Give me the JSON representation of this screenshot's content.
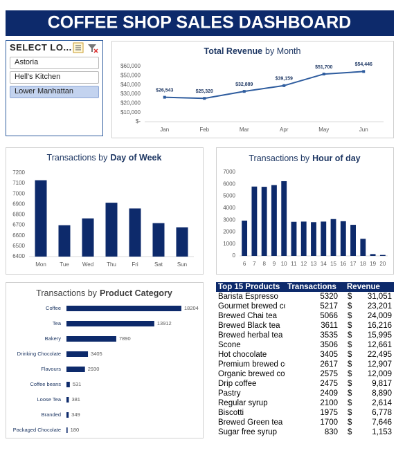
{
  "header": {
    "title": "COFFEE SHOP SALES DASHBOARD"
  },
  "slicer": {
    "title": "SELECT LO...",
    "items": [
      "Astoria",
      "Hell's Kitchen",
      "Lower Manhattan"
    ],
    "selected": 2
  },
  "chart_data": [
    {
      "type": "line",
      "title": [
        {
          "text": "Total Revenue",
          "bold": true
        },
        {
          "text": "by Month",
          "bold": false
        }
      ],
      "categories": [
        "Jan",
        "Feb",
        "Mar",
        "Apr",
        "May",
        "Jun"
      ],
      "values": [
        26543,
        25320,
        32889,
        39159,
        51700,
        54446
      ],
      "value_labels": [
        "$26,543",
        "$25,320",
        "$32,889",
        "$39,159",
        "$51,700",
        "$54,446"
      ],
      "color": "#2e5c9e",
      "ylim": [
        0,
        60000
      ],
      "yticks": [
        {
          "value": 0,
          "label": "$-"
        },
        {
          "value": 10000,
          "label": "$10,000"
        },
        {
          "value": 20000,
          "label": "$20,000"
        },
        {
          "value": 30000,
          "label": "$30,000"
        },
        {
          "value": 40000,
          "label": "$40,000"
        },
        {
          "value": 50000,
          "label": "$50,000"
        },
        {
          "value": 60000,
          "label": "$60,000"
        }
      ]
    },
    {
      "type": "bar",
      "title": [
        {
          "text": "Transactions by",
          "bold": false
        },
        {
          "text": "Day of Week",
          "bold": true
        }
      ],
      "categories": [
        "Mon",
        "Tue",
        "Wed",
        "Thu",
        "Fri",
        "Sat",
        "Sun"
      ],
      "values": [
        7130,
        6700,
        6765,
        6915,
        6860,
        6720,
        6680
      ],
      "color": "#0d2a6b",
      "ylim": [
        6400,
        7200
      ],
      "yticks": [
        6400,
        6500,
        6600,
        6700,
        6800,
        6900,
        7000,
        7100,
        7200
      ]
    },
    {
      "type": "bar",
      "title": [
        {
          "text": "Transactions by",
          "bold": false
        },
        {
          "text": "Hour of day",
          "bold": true
        }
      ],
      "categories": [
        "6",
        "7",
        "8",
        "9",
        "10",
        "11",
        "12",
        "13",
        "14",
        "15",
        "16",
        "17",
        "18",
        "19",
        "20"
      ],
      "values": [
        2950,
        5800,
        5780,
        5920,
        6250,
        2850,
        2870,
        2820,
        2870,
        3080,
        2900,
        2600,
        1430,
        150,
        80
      ],
      "color": "#0d2a6b",
      "ylim": [
        0,
        7000
      ],
      "yticks": [
        0,
        1000,
        2000,
        3000,
        4000,
        5000,
        6000,
        7000
      ]
    },
    {
      "type": "hbar",
      "title": [
        {
          "text": "Transactions by",
          "bold": false
        },
        {
          "text": "Product Category",
          "bold": true
        }
      ],
      "categories": [
        "Coffee",
        "Tea",
        "Bakery",
        "Drinking Chocolate",
        "Flavours",
        "Coffee beans",
        "Loose Tea",
        "Branded",
        "Packaged Chocolate"
      ],
      "values": [
        18204,
        13912,
        7890,
        3405,
        2930,
        531,
        381,
        349,
        180
      ],
      "color": "#0d2a6b"
    }
  ],
  "table": {
    "columns": [
      "Top 15 Products",
      "Transactions",
      "Revenue"
    ],
    "currency": "$",
    "rows": [
      [
        "Barista Espresso",
        5320,
        "31,051"
      ],
      [
        "Gourmet brewed coffee",
        5217,
        "23,201"
      ],
      [
        "Brewed Chai tea",
        5066,
        "24,009"
      ],
      [
        "Brewed Black tea",
        3611,
        "16,216"
      ],
      [
        "Brewed herbal tea",
        3535,
        "15,995"
      ],
      [
        "Scone",
        3506,
        "12,661"
      ],
      [
        "Hot chocolate",
        3405,
        "22,495"
      ],
      [
        "Premium brewed coffee",
        2617,
        "12,907"
      ],
      [
        "Organic brewed coffee",
        2575,
        "12,009"
      ],
      [
        "Drip coffee",
        2475,
        "9,817"
      ],
      [
        "Pastry",
        2409,
        "8,890"
      ],
      [
        "Regular syrup",
        2100,
        "2,614"
      ],
      [
        "Biscotti",
        1975,
        "6,778"
      ],
      [
        "Brewed Green tea",
        1700,
        "7,646"
      ],
      [
        "Sugar free syrup",
        830,
        "1,153"
      ]
    ]
  }
}
